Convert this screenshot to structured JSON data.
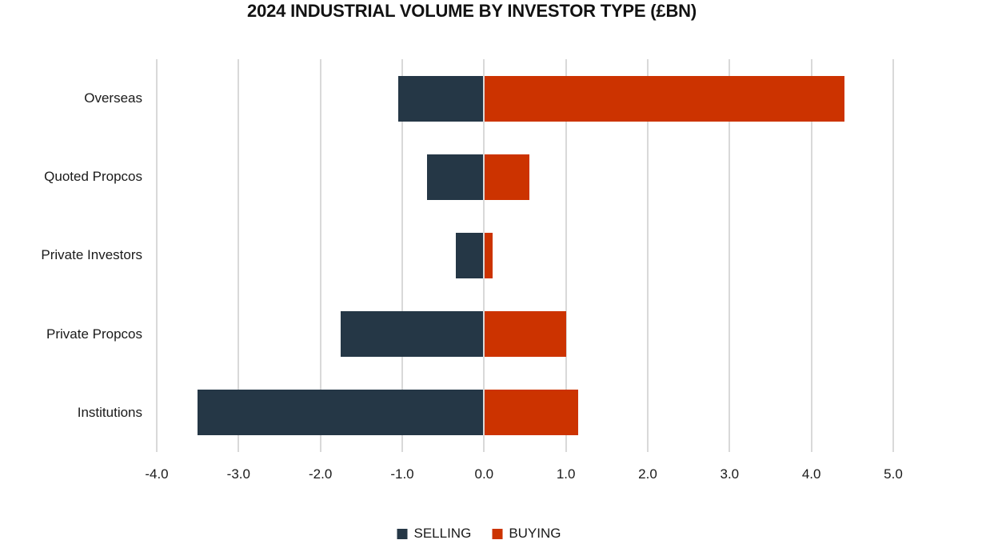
{
  "chart_data": {
    "type": "bar",
    "orientation": "horizontal",
    "title": "2024 INDUSTRIAL VOLUME BY INVESTOR TYPE (£BN)",
    "categories": [
      "Overseas",
      "Quoted Propcos",
      "Private Investors",
      "Private Propcos",
      "Institutions"
    ],
    "series": [
      {
        "name": "SELLING",
        "color": "#253746",
        "values": [
          -1.05,
          -0.7,
          -0.35,
          -1.75,
          -3.5
        ]
      },
      {
        "name": "BUYING",
        "color": "#CC3300",
        "values": [
          4.4,
          0.55,
          0.1,
          1.0,
          1.15
        ]
      }
    ],
    "xlabel": "",
    "ylabel": "",
    "xlim": [
      -4.0,
      5.0
    ],
    "x_ticks": [
      "-4.0",
      "-3.0",
      "-2.0",
      "-1.0",
      "0.0",
      "1.0",
      "2.0",
      "3.0",
      "4.0",
      "5.0"
    ],
    "grid": "vertical",
    "gridline_color": "#d9d9d9",
    "background_color": "#ffffff",
    "text_color": "#1a1a1a",
    "legend_position": "bottom"
  }
}
